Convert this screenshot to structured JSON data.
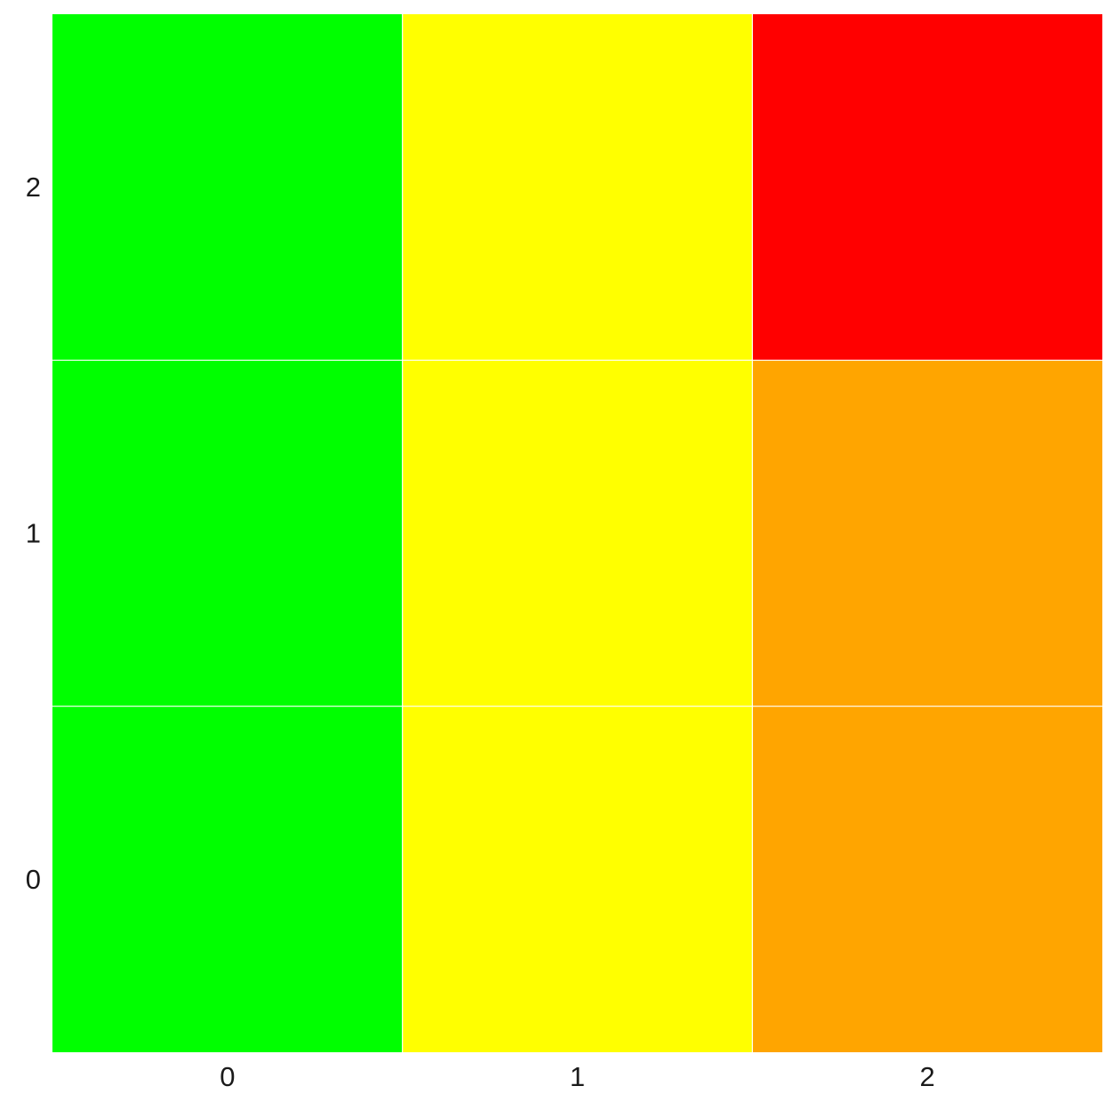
{
  "chart_data": {
    "type": "heatmap",
    "x_categories": [
      "0",
      "1",
      "2"
    ],
    "y_categories": [
      "0",
      "1",
      "2"
    ],
    "cells": [
      {
        "x": "0",
        "y": "0",
        "color": "#00ff00"
      },
      {
        "x": "1",
        "y": "0",
        "color": "#ffff00"
      },
      {
        "x": "2",
        "y": "0",
        "color": "#ffa500"
      },
      {
        "x": "0",
        "y": "1",
        "color": "#00ff00"
      },
      {
        "x": "1",
        "y": "1",
        "color": "#ffff00"
      },
      {
        "x": "2",
        "y": "1",
        "color": "#ffa500"
      },
      {
        "x": "0",
        "y": "2",
        "color": "#00ff00"
      },
      {
        "x": "1",
        "y": "2",
        "color": "#ffff00"
      },
      {
        "x": "2",
        "y": "2",
        "color": "#ff0000"
      }
    ],
    "grid": true,
    "grid_color": "#ffffff",
    "legend": "none"
  }
}
